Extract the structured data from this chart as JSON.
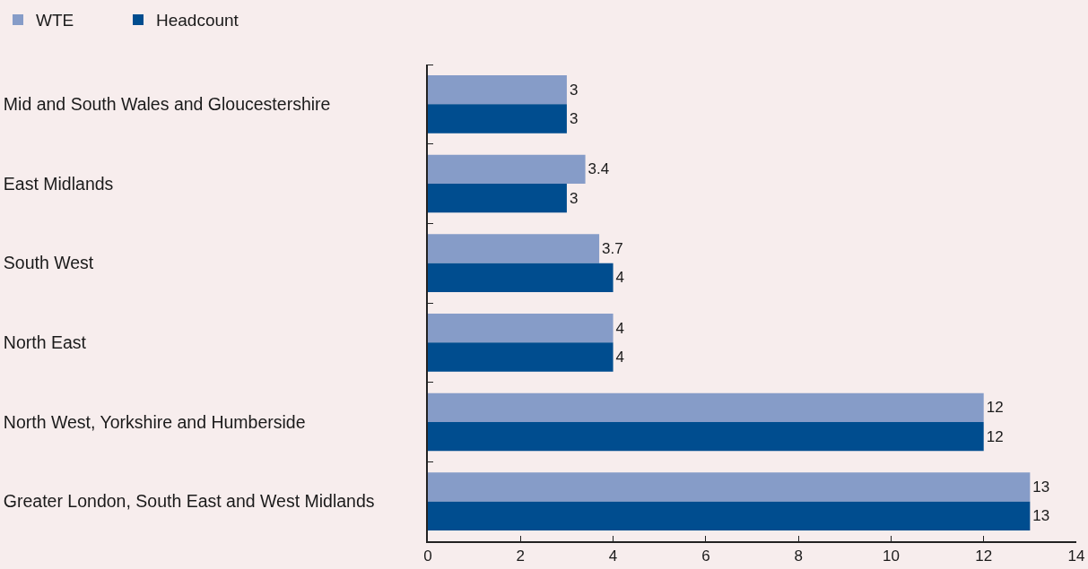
{
  "chart_data": {
    "type": "bar",
    "orientation": "horizontal",
    "categories": [
      "Mid and South Wales and Gloucestershire",
      "East Midlands",
      "South West",
      "North East",
      "North West, Yorkshire and Humberside",
      "Greater London, South East and West Midlands"
    ],
    "series": [
      {
        "name": "WTE",
        "color": "#869cc8",
        "values": [
          3,
          3.4,
          3.7,
          4,
          12,
          13
        ]
      },
      {
        "name": "Headcount",
        "color": "#004d8f",
        "values": [
          3,
          3,
          4,
          4,
          12,
          13
        ]
      }
    ],
    "xlim": [
      0,
      14
    ],
    "xticks": [
      0,
      2,
      4,
      6,
      8,
      10,
      12,
      14
    ],
    "data_labels": true,
    "legend": "top left"
  }
}
